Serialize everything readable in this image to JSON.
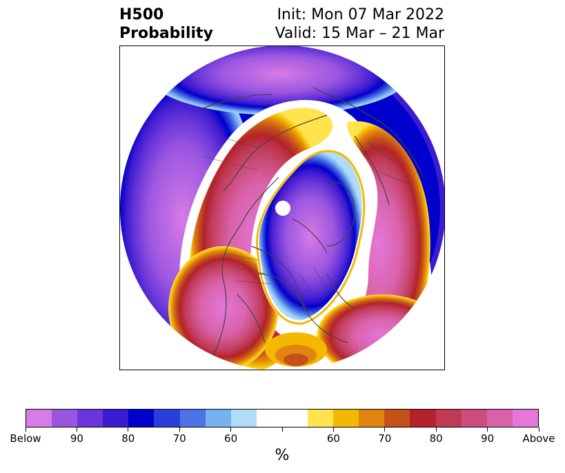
{
  "header": {
    "field_title": "H500",
    "product_title": "Probability",
    "init_text": "Init: Mon 07 Mar 2022",
    "valid_text": "Valid: 15 Mar – 21 Mar"
  },
  "map": {
    "projection": "north-polar-stereographic",
    "coastlines_color": "#444444",
    "pole_marker_color": "#ffffff"
  },
  "colorbar": {
    "unit": "%",
    "colors": [
      "#d77be8",
      "#9b56df",
      "#6a36d9",
      "#3c1bd0",
      "#0000cc",
      "#2a3fd9",
      "#4e73e6",
      "#76b1f0",
      "#b0dcf8",
      "#ffffff",
      "#ffffff",
      "#ffe44d",
      "#f5b800",
      "#e08410",
      "#c4501a",
      "#b3222a",
      "#c03a55",
      "#cc4d7e",
      "#d962aa",
      "#e377da"
    ],
    "tick_labels": [
      "Below",
      "90",
      "80",
      "70",
      "60",
      "",
      "60",
      "70",
      "80",
      "90",
      "Above"
    ]
  }
}
